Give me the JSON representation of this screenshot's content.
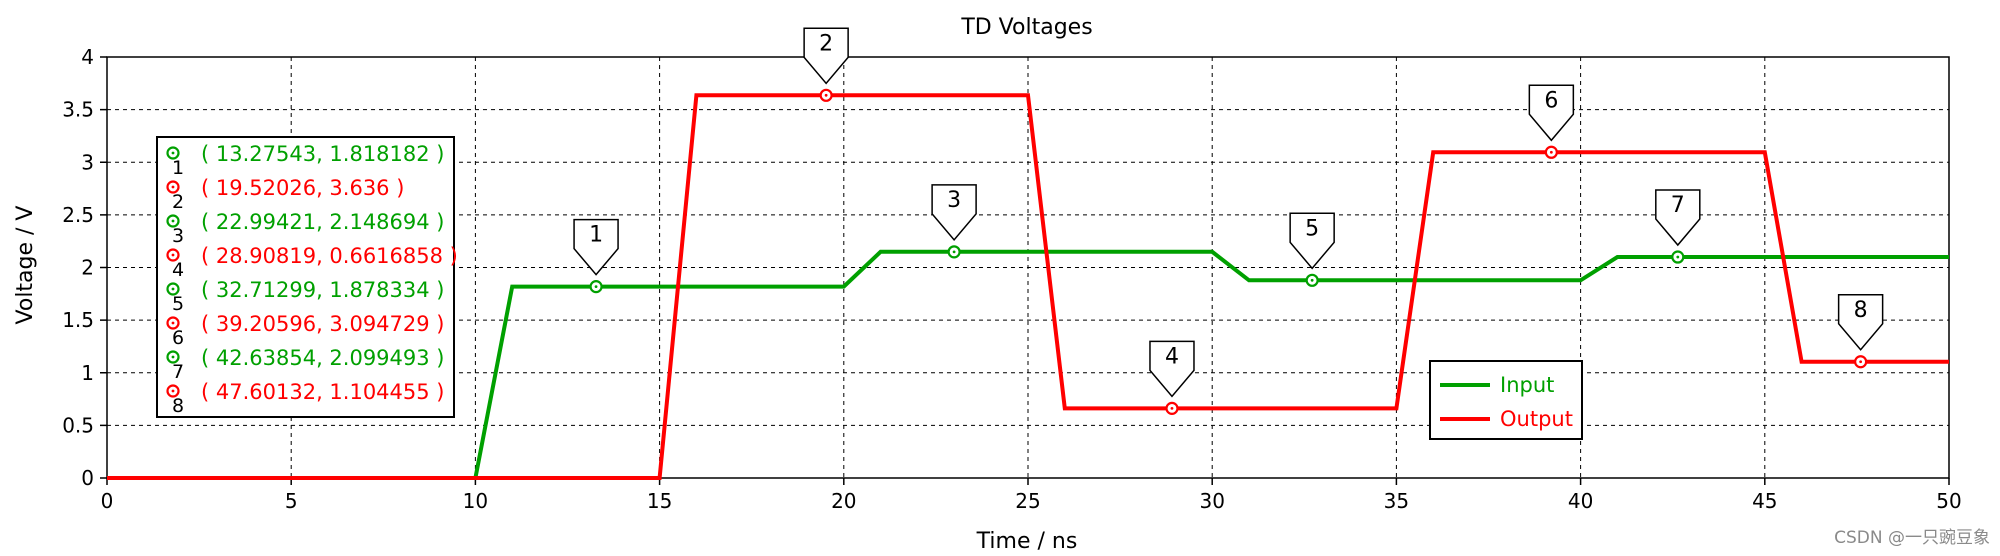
{
  "chart_data": {
    "type": "line",
    "title": "TD Voltages",
    "xlabel": "Time / ns",
    "ylabel": "Voltage / V",
    "xlim": [
      0,
      50
    ],
    "ylim": [
      0,
      4
    ],
    "xticks": [
      "0",
      "5",
      "10",
      "15",
      "20",
      "25",
      "30",
      "35",
      "40",
      "45",
      "50"
    ],
    "yticks": [
      "0",
      "0.5",
      "1",
      "1.5",
      "2",
      "2.5",
      "3",
      "3.5",
      "4"
    ],
    "grid": true,
    "legend_position": "bottom-right",
    "series": [
      {
        "name": "Input",
        "color": "#00a000",
        "x": [
          0,
          10,
          11,
          20,
          21,
          30,
          31,
          40,
          41,
          50
        ],
        "y": [
          0,
          0,
          1.818182,
          1.818182,
          2.148694,
          2.148694,
          1.878334,
          1.878334,
          2.099493,
          2.099493
        ]
      },
      {
        "name": "Output",
        "color": "#ff0000",
        "x": [
          0,
          15,
          16,
          25,
          26,
          35,
          36,
          45,
          46,
          50
        ],
        "y": [
          0,
          0,
          3.636,
          3.636,
          0.6616858,
          0.6616858,
          3.094729,
          3.094729,
          1.104455,
          1.104455
        ]
      }
    ],
    "markers": [
      {
        "label": "1",
        "x": 13.27543,
        "y": 1.818182,
        "text": "( 13.27543, 1.818182 )",
        "color": "#00a000"
      },
      {
        "label": "2",
        "x": 19.52026,
        "y": 3.636,
        "text": "( 19.52026, 3.636 )",
        "color": "#ff0000"
      },
      {
        "label": "3",
        "x": 22.99421,
        "y": 2.148694,
        "text": "( 22.99421, 2.148694 )",
        "color": "#00a000"
      },
      {
        "label": "4",
        "x": 28.90819,
        "y": 0.6616858,
        "text": "( 28.90819, 0.6616858 )",
        "color": "#ff0000"
      },
      {
        "label": "5",
        "x": 32.71299,
        "y": 1.878334,
        "text": "( 32.71299, 1.878334 )",
        "color": "#00a000"
      },
      {
        "label": "6",
        "x": 39.20596,
        "y": 3.094729,
        "text": "( 39.20596, 3.094729 )",
        "color": "#ff0000"
      },
      {
        "label": "7",
        "x": 42.63854,
        "y": 2.099493,
        "text": "( 42.63854, 2.099493 )",
        "color": "#00a000"
      },
      {
        "label": "8",
        "x": 47.60132,
        "y": 1.104455,
        "text": "( 47.60132, 1.104455 )",
        "color": "#ff0000"
      }
    ]
  },
  "watermark": "CSDN @一只豌豆象"
}
